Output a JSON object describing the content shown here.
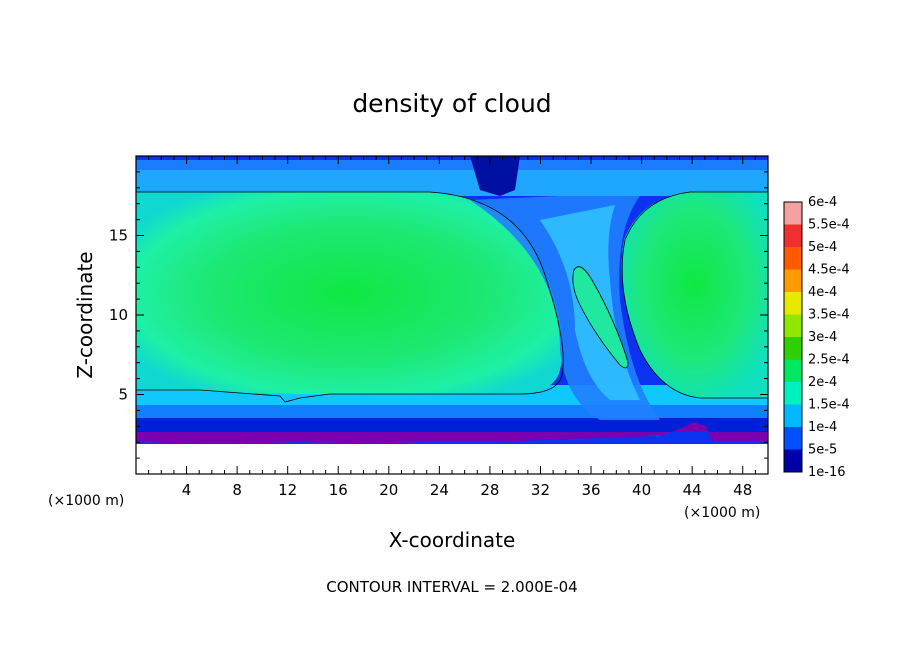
{
  "chart_data": {
    "type": "heatmap",
    "title": "density of cloud",
    "xlabel": "X-coordinate",
    "ylabel": "Z-coordinate",
    "x_unit_label": "(×1000 m)",
    "z_unit_label": "(×1000 m)",
    "xlim": [
      0,
      50
    ],
    "ylim": [
      0,
      20
    ],
    "x_ticks": [
      "4",
      "8",
      "12",
      "16",
      "20",
      "24",
      "28",
      "32",
      "36",
      "40",
      "44",
      "48"
    ],
    "y_ticks": [
      "5",
      "10",
      "15"
    ],
    "x_tick_values": [
      4,
      8,
      12,
      16,
      20,
      24,
      28,
      32,
      36,
      40,
      44,
      48
    ],
    "y_tick_values": [
      5,
      10,
      15
    ],
    "contour_interval_text": "CONTOUR INTERVAL = 2.000E-04",
    "colorbar": {
      "labels": [
        "6e-4",
        "5.5e-4",
        "5e-4",
        "4.5e-4",
        "4e-4",
        "3.5e-4",
        "3e-4",
        "2.5e-4",
        "2e-4",
        "1.5e-4",
        "1e-4",
        "5e-5",
        "1e-16"
      ],
      "colors": [
        "#f4a0a0",
        "#f03030",
        "#ff5a00",
        "#ff9a00",
        "#e8e800",
        "#90e800",
        "#30d000",
        "#00e860",
        "#00f0c0",
        "#00b8ff",
        "#0050ff",
        "#0000a8",
        "#7a00a8"
      ]
    },
    "regions": {
      "left_cloud_max": 0.0003,
      "right_cloud_max": 0.0003,
      "cloud_base_km": 2,
      "cloud_top_km": 18
    }
  }
}
